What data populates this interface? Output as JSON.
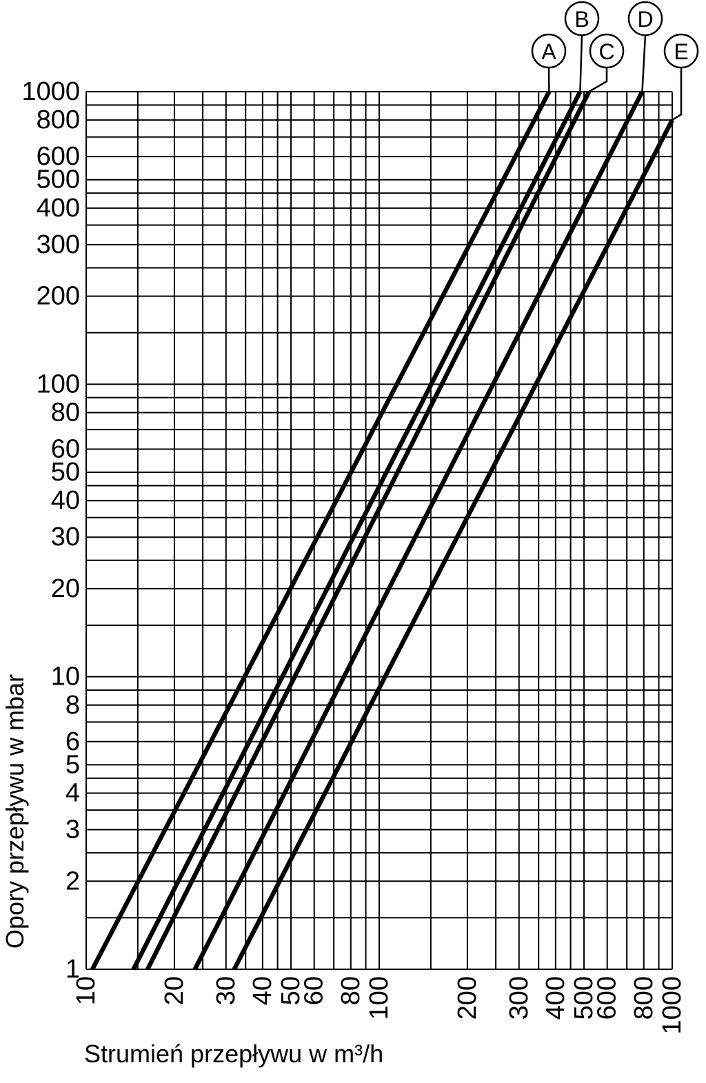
{
  "chart_data": {
    "type": "line",
    "xscale": "log",
    "yscale": "log",
    "xlabel": "Strumień przepływu w m³/h",
    "ylabel": "Opory przepływu w mbar",
    "xlim": [
      10,
      1000
    ],
    "ylim": [
      1,
      1000
    ],
    "grid": true,
    "x_grid": [
      10,
      15,
      20,
      25,
      30,
      35,
      40,
      45,
      50,
      60,
      70,
      80,
      90,
      100,
      150,
      200,
      250,
      300,
      350,
      400,
      450,
      500,
      600,
      700,
      800,
      900,
      1000
    ],
    "y_grid": [
      1,
      1.5,
      2,
      2.5,
      3,
      3.5,
      4,
      4.5,
      5,
      6,
      7,
      8,
      9,
      10,
      15,
      20,
      25,
      30,
      35,
      40,
      45,
      50,
      60,
      70,
      80,
      90,
      100,
      150,
      200,
      250,
      300,
      350,
      400,
      450,
      500,
      600,
      700,
      800,
      900,
      1000
    ],
    "xticks": [
      {
        "value": 10,
        "label": "10"
      },
      {
        "value": 20,
        "label": "20"
      },
      {
        "value": 30,
        "label": "30"
      },
      {
        "value": 40,
        "label": "40"
      },
      {
        "value": 50,
        "label": "50"
      },
      {
        "value": 60,
        "label": "60"
      },
      {
        "value": 80,
        "label": "80"
      },
      {
        "value": 100,
        "label": "100"
      },
      {
        "value": 200,
        "label": "200"
      },
      {
        "value": 300,
        "label": "300"
      },
      {
        "value": 400,
        "label": "400"
      },
      {
        "value": 500,
        "label": "500"
      },
      {
        "value": 600,
        "label": "600"
      },
      {
        "value": 800,
        "label": "800"
      },
      {
        "value": 1000,
        "label": "1000"
      }
    ],
    "yticks": [
      {
        "value": 1,
        "label": "1"
      },
      {
        "value": 2,
        "label": "2"
      },
      {
        "value": 3,
        "label": "3"
      },
      {
        "value": 4,
        "label": "4"
      },
      {
        "value": 5,
        "label": "5"
      },
      {
        "value": 6,
        "label": "6"
      },
      {
        "value": 8,
        "label": "8"
      },
      {
        "value": 10,
        "label": "10"
      },
      {
        "value": 20,
        "label": "20"
      },
      {
        "value": 30,
        "label": "30"
      },
      {
        "value": 40,
        "label": "40"
      },
      {
        "value": 50,
        "label": "50"
      },
      {
        "value": 60,
        "label": "60"
      },
      {
        "value": 80,
        "label": "80"
      },
      {
        "value": 100,
        "label": "100"
      },
      {
        "value": 200,
        "label": "200"
      },
      {
        "value": 300,
        "label": "300"
      },
      {
        "value": 400,
        "label": "400"
      },
      {
        "value": 500,
        "label": "500"
      },
      {
        "value": 600,
        "label": "600"
      },
      {
        "value": 800,
        "label": "800"
      },
      {
        "value": 1000,
        "label": "1000"
      }
    ],
    "series": [
      {
        "name": "A",
        "x": [
          10.5,
          380
        ],
        "y": [
          1,
          1000
        ]
      },
      {
        "name": "B",
        "x": [
          14.5,
          485
        ],
        "y": [
          1,
          1000
        ]
      },
      {
        "name": "C",
        "x": [
          16.2,
          520
        ],
        "y": [
          1,
          1000
        ]
      },
      {
        "name": "D",
        "x": [
          23.5,
          790
        ],
        "y": [
          1,
          1000
        ]
      },
      {
        "name": "E",
        "x": [
          32,
          1000
        ],
        "y": [
          1,
          800
        ]
      }
    ],
    "line_color": "#000000"
  }
}
